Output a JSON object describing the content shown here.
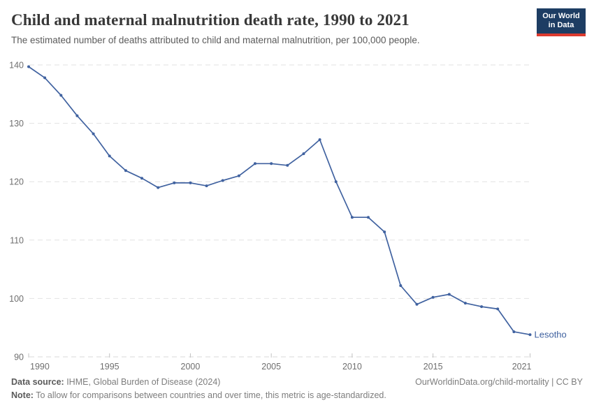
{
  "header": {
    "title": "Child and maternal malnutrition death rate, 1990 to 2021",
    "subtitle": "The estimated number of deaths attributed to child and maternal malnutrition, per 100,000 people.",
    "logo": {
      "line1": "Our World",
      "line2": "in Data"
    }
  },
  "chart_data": {
    "type": "line",
    "title": "Child and maternal malnutrition death rate, 1990 to 2021",
    "xlabel": "",
    "ylabel": "",
    "xlim": [
      1990,
      2021
    ],
    "ylim": [
      90,
      140
    ],
    "xticks": [
      1990,
      1995,
      2000,
      2005,
      2010,
      2015,
      2021
    ],
    "yticks": [
      90,
      100,
      110,
      120,
      130,
      140
    ],
    "grid": "horizontal-dashed",
    "legend_position": "end-of-line-label",
    "series": [
      {
        "name": "Lesotho",
        "color": "#4062a0",
        "x": [
          1990,
          1991,
          1992,
          1993,
          1994,
          1995,
          1996,
          1997,
          1998,
          1999,
          2000,
          2001,
          2002,
          2003,
          2004,
          2005,
          2006,
          2007,
          2008,
          2009,
          2010,
          2011,
          2012,
          2013,
          2014,
          2015,
          2016,
          2017,
          2018,
          2019,
          2020,
          2021
        ],
        "values": [
          139.7,
          137.8,
          134.8,
          131.3,
          128.2,
          124.4,
          121.9,
          120.6,
          119.0,
          119.8,
          119.8,
          119.3,
          120.2,
          121.0,
          123.1,
          123.1,
          122.8,
          124.8,
          127.2,
          120.0,
          113.9,
          113.9,
          111.4,
          102.2,
          99.0,
          100.2,
          100.7,
          99.2,
          98.6,
          98.2,
          94.3,
          93.8
        ]
      }
    ]
  },
  "footer": {
    "data_source_label": "Data source:",
    "data_source_value": " IHME, Global Burden of Disease (2024)",
    "right_text": "OurWorldinData.org/child-mortality | CC BY",
    "note_label": "Note:",
    "note_value": " To allow for comparisons between countries and over time, this metric is age-standardized."
  },
  "colors": {
    "line": "#4062a0",
    "logo_navy": "#1d3d63",
    "logo_red": "#dc3a2f",
    "title_text": "#383838",
    "subtitle_text": "#5b5b5b",
    "axis_text": "#6f6f6f",
    "gridline": "#e2e2e2",
    "footer_text": "#7d7d7d"
  }
}
